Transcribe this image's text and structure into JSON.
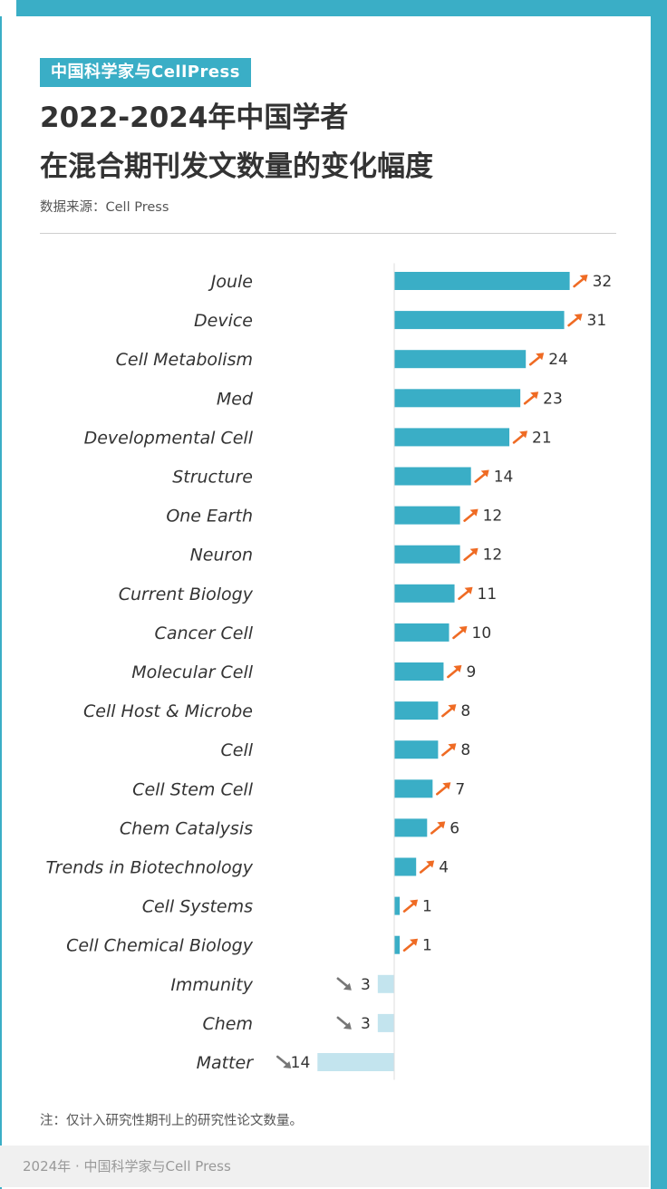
{
  "brand": "中国科学家与CellPress",
  "title_line1": "2022-2024年中国学者",
  "title_line2": "在混合期刊发文数量的变化幅度",
  "source": "数据来源：Cell Press",
  "note": "注：仅计入研究性期刊上的研究性论文数量。",
  "footer": "2024年 · 中国科学家与Cell Press",
  "colors": {
    "accent": "#3aaec6",
    "positive_bar": "#3aaec6",
    "negative_bar": "#c3e4ee",
    "up_arrow": "#ef6b24",
    "down_arrow": "#777777",
    "label_text": "#333333"
  },
  "chart_data": {
    "type": "bar",
    "orientation": "horizontal",
    "categories": [
      "Joule",
      "Device",
      "Cell Metabolism",
      "Med",
      "Developmental Cell",
      "Structure",
      "One Earth",
      "Neuron",
      "Current Biology",
      "Cancer Cell",
      "Molecular Cell",
      "Cell Host & Microbe",
      "Cell",
      "Cell Stem Cell",
      "Chem Catalysis",
      "Trends in Biotechnology",
      "Cell Systems",
      "Cell Chemical Biology",
      "Immunity",
      "Chem",
      "Matter"
    ],
    "values": [
      32,
      31,
      24,
      23,
      21,
      14,
      12,
      12,
      11,
      10,
      9,
      8,
      8,
      7,
      6,
      4,
      1,
      1,
      -3,
      -3,
      -14
    ],
    "value_labels": [
      "32",
      "31",
      "24",
      "23",
      "21",
      "14",
      "12",
      "12",
      "11",
      "10",
      "9",
      "8",
      "8",
      "7",
      "6",
      "4",
      "1",
      "1",
      "3",
      "3",
      "14"
    ],
    "title": "",
    "xlabel": "",
    "ylabel": "",
    "grid": false
  }
}
